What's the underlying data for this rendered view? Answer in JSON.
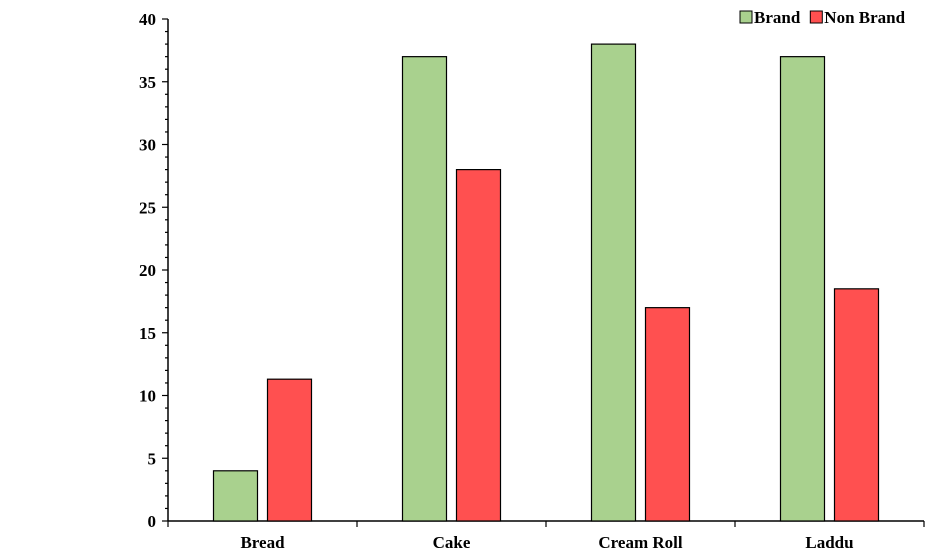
{
  "chart_data": {
    "type": "bar",
    "categories": [
      "Bread",
      "Cake",
      "Cream Roll",
      "Laddu"
    ],
    "series": [
      {
        "name": "Brand",
        "color": "#a9d18e",
        "values": [
          4,
          37,
          38,
          37
        ]
      },
      {
        "name": "Non Brand",
        "color": "#ff5050",
        "values": [
          11.3,
          28,
          17,
          18.5
        ]
      }
    ],
    "title": "",
    "xlabel": "",
    "ylabel": "",
    "ylim": [
      0,
      40
    ],
    "yticks": [
      0,
      5,
      10,
      15,
      20,
      25,
      30,
      35,
      40
    ],
    "ytick_labels": [
      "0",
      "5",
      "10",
      "15",
      "20",
      "25",
      "30",
      "35",
      "40"
    ],
    "grid": false,
    "legend_position": "top-right"
  }
}
